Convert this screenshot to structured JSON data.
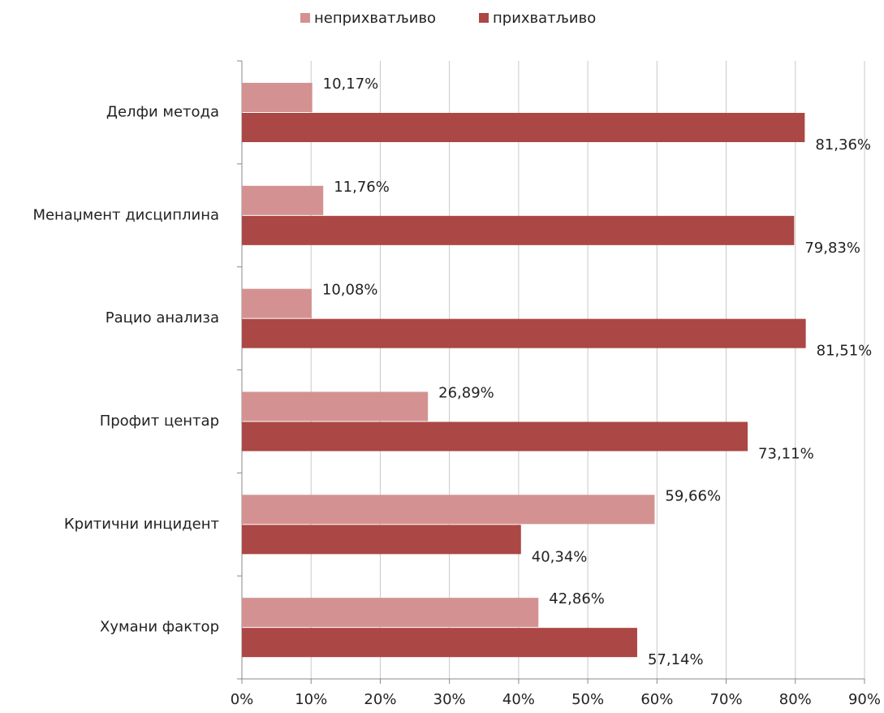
{
  "chart_data": {
    "type": "hbar",
    "categories": [
      "Делфи метода",
      "Менаџмент дисциплина",
      "Рацио анализа",
      "Профит центар",
      "Критични инцидент",
      "Хумани фактор"
    ],
    "series": [
      {
        "name": "неприхватљиво",
        "color": "#d39291",
        "values": [
          10.17,
          11.76,
          10.08,
          26.89,
          59.66,
          42.86
        ],
        "value_labels": [
          "10,17%",
          "11,76%",
          "10,08%",
          "26,89%",
          "59,66%",
          "42,86%"
        ]
      },
      {
        "name": "прихватљиво",
        "color": "#ab4744",
        "values": [
          81.36,
          79.83,
          81.51,
          73.11,
          40.34,
          57.14
        ],
        "value_labels": [
          "81,36%",
          "79,83%",
          "81,51%",
          "73,11%",
          "40,34%",
          "57,14%"
        ]
      }
    ],
    "xlim": [
      0,
      90
    ],
    "xticks": [
      {
        "value": 0,
        "label": "0%"
      },
      {
        "value": 10,
        "label": "10%"
      },
      {
        "value": 20,
        "label": "20%"
      },
      {
        "value": 30,
        "label": "30%"
      },
      {
        "value": 40,
        "label": "40%"
      },
      {
        "value": 50,
        "label": "50%"
      },
      {
        "value": 60,
        "label": "60%"
      },
      {
        "value": 70,
        "label": "70%"
      },
      {
        "value": 80,
        "label": "80%"
      },
      {
        "value": 90,
        "label": "90%"
      }
    ],
    "grid": true,
    "legend": "top"
  }
}
